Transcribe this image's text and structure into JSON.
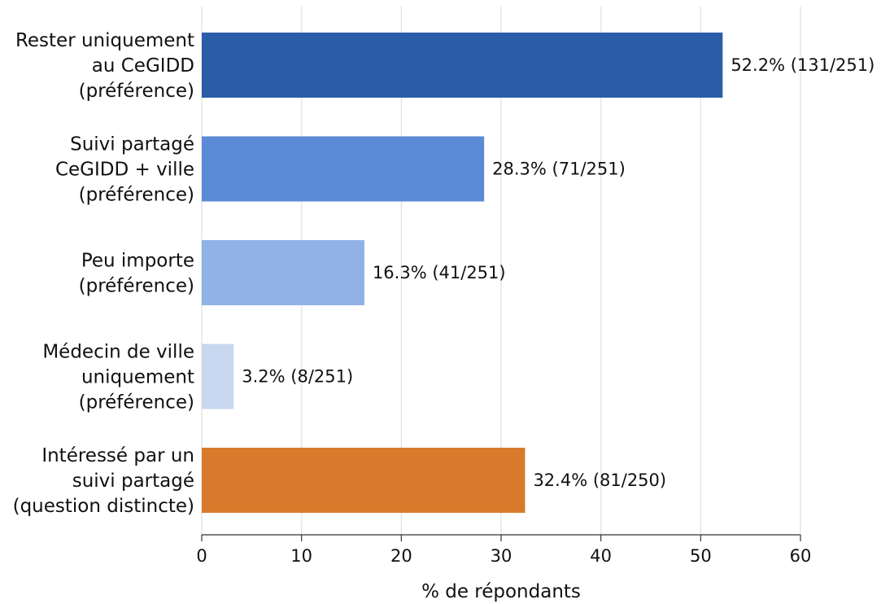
{
  "chart_data": {
    "type": "bar",
    "orientation": "horizontal",
    "categories": [
      [
        "Rester uniquement",
        "au CeGIDD",
        "(préférence)"
      ],
      [
        "Suivi partagé",
        "CeGIDD + ville",
        "(préférence)"
      ],
      [
        "Peu importe",
        "(préférence)"
      ],
      [
        "Médecin de ville",
        "uniquement",
        "(préférence)"
      ],
      [
        "Intéressé par un",
        "suivi partagé",
        "(question distincte)"
      ]
    ],
    "values": [
      52.2,
      28.3,
      16.3,
      3.2,
      32.4
    ],
    "data_labels": [
      "52.2% (131/251)",
      "28.3% (71/251)",
      "16.3% (41/251)",
      "3.2% (8/251)",
      "32.4% (81/250)"
    ],
    "colors": [
      "#2b5ca8",
      "#5b8bd4",
      "#91b2e5",
      "#c8d8f0",
      "#d9792b"
    ],
    "xlabel": "% de répondants",
    "ylabel": "",
    "title": "",
    "xlim": [
      0,
      60
    ],
    "xticks": [
      "0",
      "10",
      "20",
      "30",
      "40",
      "50",
      "60"
    ],
    "grid": "vertical"
  }
}
